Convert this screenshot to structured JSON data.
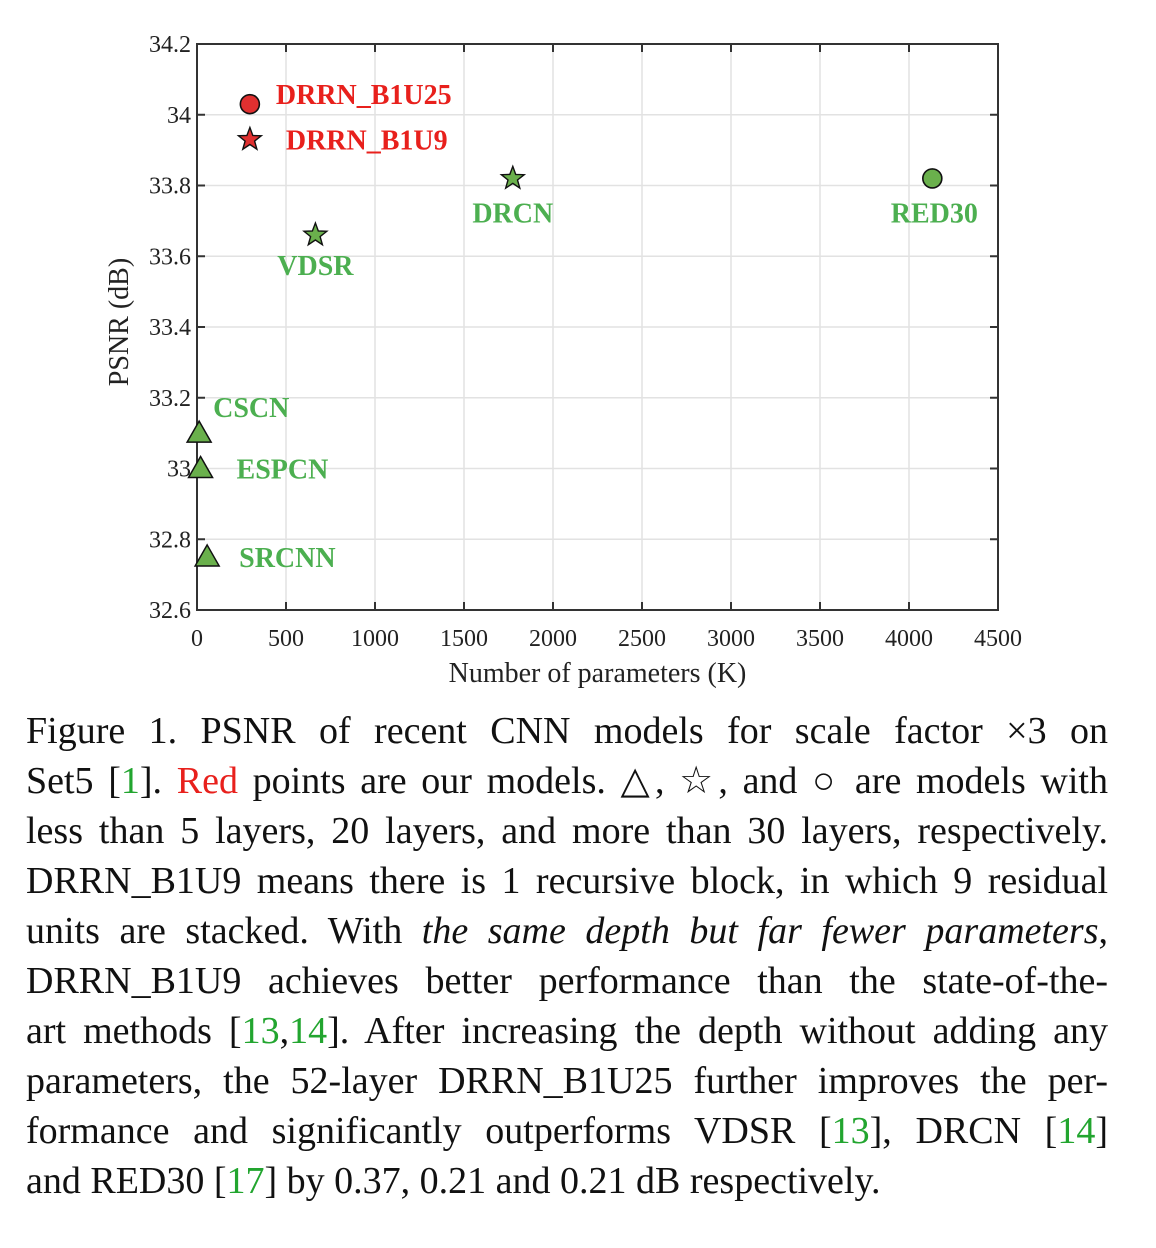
{
  "chart_data": {
    "type": "scatter",
    "xlabel": "Number of parameters (K)",
    "ylabel": "PSNR (dB)",
    "xlim": [
      0,
      4500
    ],
    "ylim": [
      32.6,
      34.2
    ],
    "x_ticks": [
      "0",
      "500",
      "1000",
      "1500",
      "2000",
      "2500",
      "3000",
      "3500",
      "4000",
      "4500"
    ],
    "y_ticks": [
      "32.6",
      "32.8",
      "33",
      "33.2",
      "33.4",
      "33.6",
      "33.8",
      "34",
      "34.2"
    ],
    "grid": true,
    "points": [
      {
        "label": "DRRN_B1U25",
        "x": 297,
        "y": 34.03,
        "marker": "circle",
        "color": "#e03030"
      },
      {
        "label": "DRRN_B1U9",
        "x": 297,
        "y": 33.93,
        "marker": "star",
        "color": "#e03030"
      },
      {
        "label": "DRCN",
        "x": 1774,
        "y": 33.82,
        "marker": "star",
        "color": "#6ab04c"
      },
      {
        "label": "RED30",
        "x": 4131,
        "y": 33.82,
        "marker": "circle",
        "color": "#6ab04c"
      },
      {
        "label": "VDSR",
        "x": 665,
        "y": 33.66,
        "marker": "star",
        "color": "#6ab04c"
      },
      {
        "label": "CSCN",
        "x": 12,
        "y": 33.1,
        "marker": "triangle",
        "color": "#6ab04c"
      },
      {
        "label": "ESPCN",
        "x": 20,
        "y": 33.0,
        "marker": "triangle",
        "color": "#6ab04c"
      },
      {
        "label": "SRCNN",
        "x": 57,
        "y": 32.75,
        "marker": "triangle",
        "color": "#6ab04c"
      }
    ],
    "label_colors": {
      "ours": "#e8201c",
      "others": "#4caf50"
    }
  },
  "caption": {
    "lines": [
      [
        {
          "t": "Figure 1. PSNR of recent CNN models for scale factor ×3 on"
        }
      ],
      [
        {
          "t": "Set5 ["
        },
        {
          "t": "1",
          "c": "green"
        },
        {
          "t": "]. "
        },
        {
          "t": "Red",
          "c": "red"
        },
        {
          "t": " points are our models. △, ☆, and ○ are models with"
        }
      ],
      [
        {
          "t": "less than 5 layers, 20 layers, and more than 30 layers, respectively."
        }
      ],
      [
        {
          "t": "DRRN_B1U9 means there is 1 recursive block, in which 9 residual"
        }
      ],
      [
        {
          "t": "units are stacked.  With "
        },
        {
          "t": "the same depth but far fewer parameters",
          "c": "it"
        },
        {
          "t": ","
        }
      ],
      [
        {
          "t": "DRRN_B1U9 achieves better performance than the state-of-the-"
        }
      ],
      [
        {
          "t": "art methods ["
        },
        {
          "t": "13",
          "c": "green"
        },
        {
          "t": ","
        },
        {
          "t": "14",
          "c": "green"
        },
        {
          "t": "]. After increasing the depth without adding any"
        }
      ],
      [
        {
          "t": "parameters, the 52-layer DRRN_B1U25 further improves the per-"
        }
      ],
      [
        {
          "t": "formance and significantly outperforms VDSR ["
        },
        {
          "t": "13",
          "c": "green"
        },
        {
          "t": "], DRCN ["
        },
        {
          "t": "14",
          "c": "green"
        },
        {
          "t": "]"
        }
      ],
      [
        {
          "t": "and RED30 ["
        },
        {
          "t": "17",
          "c": "green"
        },
        {
          "t": "] by 0.37, 0.21 and 0.21 dB respectively."
        }
      ]
    ]
  }
}
